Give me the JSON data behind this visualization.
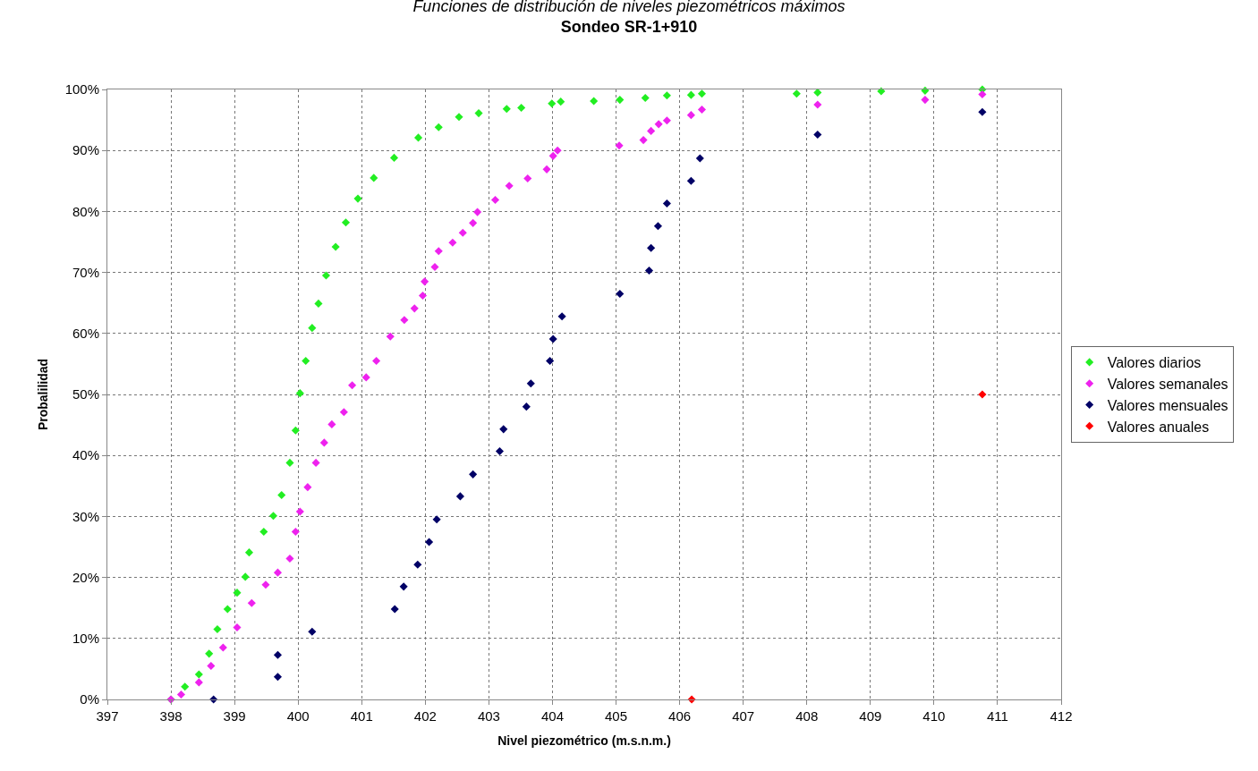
{
  "chart_data": {
    "type": "scatter",
    "title": "Funciones de distribución de niveles piezométricos máximos",
    "subtitle": "Sondeo SR-1+910",
    "xlabel": "Nivel piezométrico (m.s.n.m.)",
    "ylabel": "Probalilidad",
    "marker": "diamond",
    "grid": true,
    "legend": "right",
    "xlim": [
      397,
      412
    ],
    "xticks": [
      397,
      398,
      399,
      400,
      401,
      402,
      403,
      404,
      405,
      406,
      407,
      408,
      409,
      410,
      411,
      412
    ],
    "ylim": [
      0,
      100
    ],
    "yticks": [
      {
        "value": 0,
        "label": "0%"
      },
      {
        "value": 10,
        "label": "10%"
      },
      {
        "value": 20,
        "label": "20%"
      },
      {
        "value": 30,
        "label": "30%"
      },
      {
        "value": 40,
        "label": "40%"
      },
      {
        "value": 50,
        "label": "50%"
      },
      {
        "value": 60,
        "label": "60%"
      },
      {
        "value": 70,
        "label": "70%"
      },
      {
        "value": 80,
        "label": "80%"
      },
      {
        "value": 90,
        "label": "90%"
      },
      {
        "value": 100,
        "label": "100%"
      }
    ],
    "series": [
      {
        "name": "Valores diarios",
        "color": "#22ee22",
        "x": [
          398.0,
          398.22,
          398.44,
          398.6,
          398.73,
          398.89,
          399.04,
          399.17,
          399.23,
          399.46,
          399.61,
          399.74,
          399.87,
          399.96,
          400.03,
          400.12,
          400.22,
          400.32,
          400.44,
          400.59,
          400.75,
          400.94,
          401.19,
          401.51,
          401.89,
          402.21,
          402.53,
          402.84,
          403.28,
          403.51,
          403.99,
          404.13,
          404.65,
          405.06,
          405.46,
          405.8,
          406.18,
          406.35,
          407.84,
          408.17,
          409.17,
          409.86,
          410.76
        ],
        "values": [
          0,
          2.1,
          4.1,
          7.5,
          11.5,
          14.8,
          17.5,
          20.1,
          24.1,
          27.5,
          30.1,
          33.5,
          38.8,
          44.1,
          50.2,
          55.5,
          60.9,
          64.9,
          69.5,
          74.2,
          78.2,
          82.1,
          85.5,
          88.8,
          92.1,
          93.8,
          95.5,
          96.1,
          96.8,
          97.0,
          97.7,
          98.0,
          98.1,
          98.3,
          98.6,
          99.0,
          99.1,
          99.3,
          99.3,
          99.5,
          99.7,
          99.8,
          100
        ]
      },
      {
        "name": "Valores semanales",
        "color": "#ee22ee",
        "x": [
          398.0,
          398.16,
          398.44,
          398.63,
          398.82,
          399.04,
          399.27,
          399.49,
          399.68,
          399.87,
          399.96,
          400.03,
          400.15,
          400.28,
          400.41,
          400.53,
          400.72,
          400.85,
          401.07,
          401.23,
          401.45,
          401.67,
          401.83,
          401.96,
          401.99,
          402.15,
          402.21,
          402.43,
          402.59,
          402.75,
          402.82,
          403.1,
          403.32,
          403.61,
          403.91,
          404.01,
          404.08,
          405.05,
          405.43,
          405.55,
          405.67,
          405.8,
          406.18,
          406.35,
          408.17,
          409.86,
          410.76
        ],
        "values": [
          0,
          0.8,
          2.8,
          5.5,
          8.5,
          11.8,
          15.8,
          18.8,
          20.8,
          23.1,
          27.5,
          30.8,
          34.8,
          38.8,
          42.1,
          45.1,
          47.1,
          51.5,
          52.8,
          55.5,
          59.5,
          62.2,
          64.1,
          66.2,
          68.5,
          70.9,
          73.5,
          74.9,
          76.5,
          78.1,
          79.9,
          81.9,
          84.2,
          85.4,
          86.9,
          89.1,
          90.0,
          90.8,
          91.7,
          93.2,
          94.3,
          94.9,
          95.8,
          96.7,
          97.5,
          98.3,
          99.2
        ]
      },
      {
        "name": "Valores mensuales",
        "color": "#000066",
        "x": [
          398.67,
          399.68,
          399.68,
          400.22,
          401.52,
          401.66,
          401.88,
          402.06,
          402.18,
          402.55,
          402.75,
          403.17,
          403.23,
          403.59,
          403.66,
          403.96,
          404.01,
          404.15,
          405.06,
          405.52,
          405.55,
          405.66,
          405.8,
          406.18,
          406.32,
          408.17,
          410.76
        ],
        "values": [
          0,
          3.7,
          7.3,
          11.1,
          14.8,
          18.5,
          22.1,
          25.8,
          29.5,
          33.3,
          36.9,
          40.7,
          44.3,
          48.0,
          51.8,
          55.5,
          59.1,
          62.8,
          66.5,
          70.3,
          74.0,
          77.6,
          81.3,
          85.0,
          88.7,
          92.6,
          96.3
        ]
      },
      {
        "name": "Valores anuales",
        "color": "#ff0000",
        "x": [
          406.19,
          410.76
        ],
        "values": [
          0,
          50
        ]
      }
    ]
  }
}
